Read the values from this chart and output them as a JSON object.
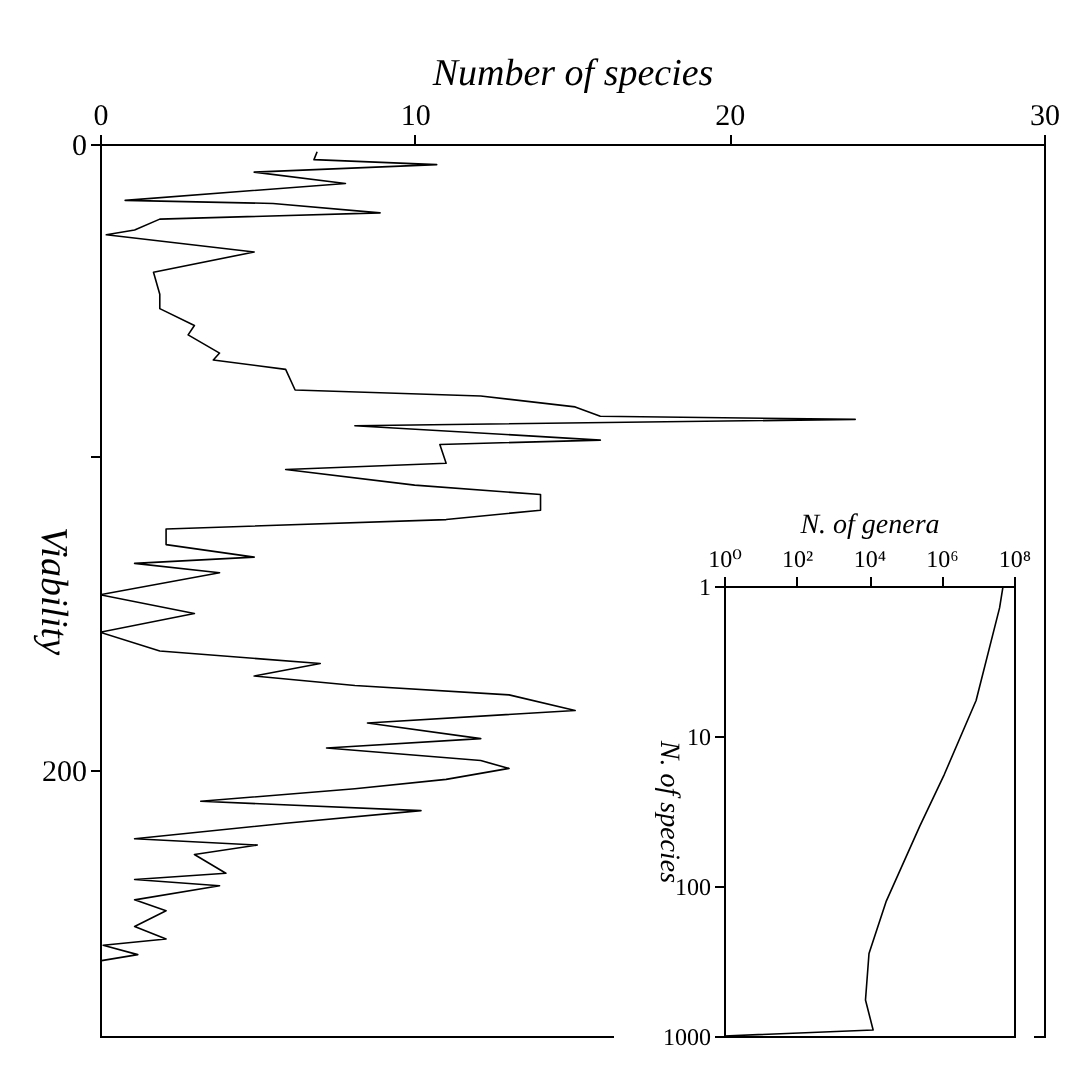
{
  "chart_data": [
    {
      "type": "line",
      "xlabel": "Number of species",
      "ylabel": "Viability",
      "xlim": [
        0,
        30
      ],
      "ylim": [
        285,
        0
      ],
      "xticks": [
        0,
        10,
        20,
        30
      ],
      "yticks": [
        0,
        {
          "value": 100,
          "label": null
        },
        200
      ],
      "grid": false,
      "marker": "none",
      "line_style": "solid",
      "series": [
        {
          "color": "#000000",
          "values": [
            2.5,
            5,
            6.6,
            9,
            12.6,
            18,
            19,
            22,
            24,
            27.5,
            29,
            34.5,
            41,
            48,
            52.6,
            58,
            61,
            66.8,
            69,
            72,
            78.6,
            80.5,
            84,
            87,
            88,
            90,
            94.6,
            96,
            102,
            104,
            109,
            112,
            117,
            120,
            123,
            128,
            132,
            134,
            137,
            144,
            150,
            156,
            162,
            166,
            170,
            173,
            176,
            181,
            185,
            190,
            193,
            197,
            199.5,
            203,
            206,
            210,
            213,
            217,
            222,
            224,
            227,
            233,
            235,
            237,
            241.5,
            245,
            250,
            254,
            256,
            259,
            261
          ],
          "x": [
            6.9,
            6.8,
            10.7,
            4.9,
            7.8,
            0.8,
            5.5,
            8.9,
            1.9,
            1.1,
            0.2,
            4.9,
            1.7,
            1.9,
            1.9,
            3.0,
            2.8,
            3.8,
            3.6,
            5.9,
            6.2,
            12.1,
            15.1,
            15.9,
            24,
            8.1,
            15.9,
            10.8,
            11.0,
            5.9,
            10,
            14,
            14,
            11,
            2.1,
            2.1,
            4.9,
            1.1,
            3.8,
            0,
            3.0,
            0,
            1.9,
            7,
            4.9,
            8.1,
            13,
            15.1,
            8.5,
            12.1,
            7.2,
            12.1,
            13,
            11,
            8.1,
            3.2,
            10.2,
            5.9,
            1.1,
            5.0,
            3,
            4.0,
            1.1,
            3.8,
            1.1,
            2.1,
            1.1,
            2.1,
            0.1,
            1.2,
            0
          ]
        }
      ]
    },
    {
      "type": "line",
      "xlabel": "N. of genera",
      "ylabel": "N. of species",
      "log": "xy",
      "xlim": [
        1,
        100000000
      ],
      "ylim": [
        1000,
        1
      ],
      "xticks": [
        {
          "value": 1,
          "label": "10⁰"
        },
        {
          "value": 100,
          "label": "10²"
        },
        {
          "value": 10000,
          "label": "10⁴"
        },
        {
          "value": 1000000,
          "label": "10⁶"
        },
        {
          "value": 100000000,
          "label": "10⁸"
        }
      ],
      "yticks": [
        1,
        10,
        100,
        1000
      ],
      "grid": false,
      "marker": "none",
      "line_style": "solid",
      "series": [
        {
          "color": "#000000",
          "values": [
            1,
            1.4,
            5.8,
            18,
            40,
            126,
            282,
            575,
            912,
            1000
          ],
          "x": [
            50000000,
            40000000,
            9000000,
            1200000,
            250000,
            30000,
            10000,
            8000,
            13000,
            1
          ]
        }
      ]
    }
  ]
}
